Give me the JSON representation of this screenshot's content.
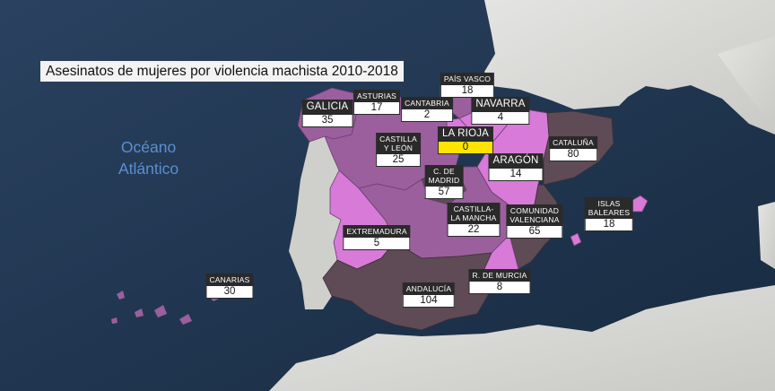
{
  "title": "Asesinatos de mujeres por violencia machista 2010-2018",
  "ocean": {
    "line1": "Océano",
    "line2": "Atlántico"
  },
  "colors": {
    "sea": "#1f3550",
    "land": "#d9d9d6",
    "low": "#d77ad8",
    "mid": "#9b5f9e",
    "high": "#5e4b56",
    "highlight": "#ffe400"
  },
  "regions": [
    {
      "id": "galicia",
      "name": "GALICIA",
      "value": "35",
      "big": true
    },
    {
      "id": "asturias",
      "name": "ASTURIAS",
      "value": "17",
      "big": false
    },
    {
      "id": "cantabria",
      "name": "CANTABRIA",
      "value": "2",
      "big": false
    },
    {
      "id": "pais-vasco",
      "name": "PAÍS VASCO",
      "value": "18",
      "big": false
    },
    {
      "id": "navarra",
      "name": "NAVARRA",
      "value": "4",
      "big": true
    },
    {
      "id": "la-rioja",
      "name": "LA RIOJA",
      "value": "0",
      "big": true,
      "highlight": true
    },
    {
      "id": "castilla-leon",
      "name": "CASTILLA\nY LEÓN",
      "value": "25",
      "big": false
    },
    {
      "id": "aragon",
      "name": "ARAGÓN",
      "value": "14",
      "big": true
    },
    {
      "id": "cataluna",
      "name": "CATALUÑA",
      "value": "80",
      "big": false
    },
    {
      "id": "madrid",
      "name": "C. DE\nMADRID",
      "value": "57",
      "big": false
    },
    {
      "id": "castilla-mancha",
      "name": "CASTILLA-\nLA MANCHA",
      "value": "22",
      "big": false
    },
    {
      "id": "comunidad-valenciana",
      "name": "COMUNIDAD\nVALENCIANA",
      "value": "65",
      "big": false
    },
    {
      "id": "islas-baleares",
      "name": "ISLAS\nBALEARES",
      "value": "18",
      "big": false
    },
    {
      "id": "extremadura",
      "name": "EXTREMADURA",
      "value": "5",
      "big": false
    },
    {
      "id": "andalucia",
      "name": "ANDALUCÍA",
      "value": "104",
      "big": false
    },
    {
      "id": "murcia",
      "name": "R. DE MURCIA",
      "value": "8",
      "big": false
    },
    {
      "id": "canarias",
      "name": "CANARIAS",
      "value": "30",
      "big": false
    }
  ]
}
